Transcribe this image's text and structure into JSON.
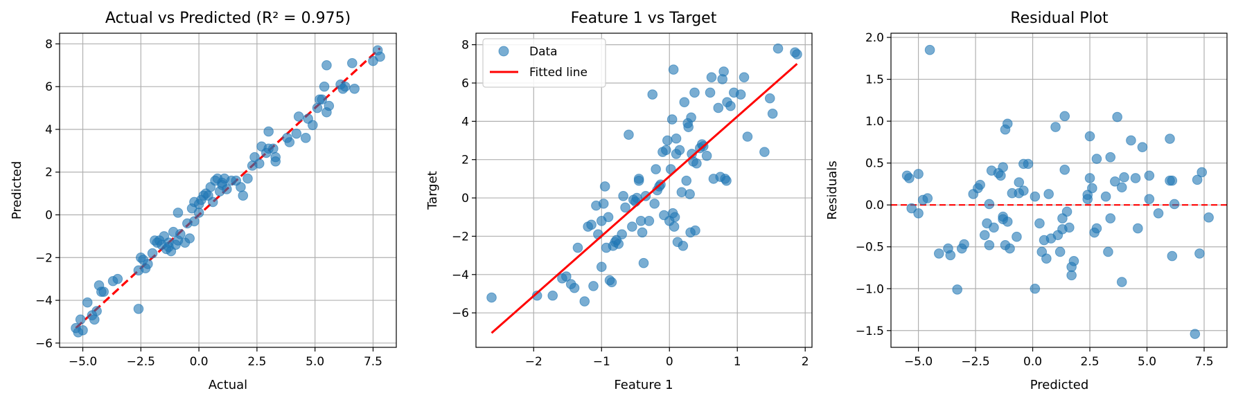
{
  "colors": {
    "point": "#1f77b4",
    "fit": "#ff0000",
    "grid": "#b0b0b0",
    "axis": "#000000"
  },
  "chart_data": [
    {
      "id": "actual-vs-predicted",
      "type": "scatter",
      "title": "Actual vs Predicted (R² = 0.975)",
      "xlabel": "Actual",
      "ylabel": "Predicted",
      "xlim": [
        -6.0,
        8.5
      ],
      "ylim": [
        -6.2,
        8.5
      ],
      "xticks": [
        -5.0,
        -2.5,
        0.0,
        2.5,
        5.0,
        7.5
      ],
      "xtick_labels": [
        "−5.0",
        "−2.5",
        "0.0",
        "2.5",
        "5.0",
        "7.5"
      ],
      "yticks": [
        -6,
        -4,
        -2,
        0,
        2,
        4,
        6,
        8
      ],
      "ytick_labels": [
        "−6",
        "−4",
        "−2",
        "0",
        "2",
        "4",
        "6",
        "8"
      ],
      "grid": true,
      "reference_line": {
        "style": "dashed",
        "x": [
          -5.3,
          7.8
        ],
        "y": [
          -5.3,
          7.8
        ]
      },
      "points": [
        [
          -5.3,
          -5.3
        ],
        [
          -5.2,
          -5.5
        ],
        [
          -5.1,
          -4.9
        ],
        [
          -5.0,
          -5.4
        ],
        [
          -4.8,
          -4.1
        ],
        [
          -4.6,
          -4.7
        ],
        [
          -4.5,
          -4.9
        ],
        [
          -4.4,
          -4.5
        ],
        [
          -4.3,
          -3.3
        ],
        [
          -4.2,
          -3.6
        ],
        [
          -4.1,
          -3.6
        ],
        [
          -3.7,
          -3.1
        ],
        [
          -3.5,
          -3.0
        ],
        [
          -2.6,
          -4.4
        ],
        [
          -2.6,
          -2.6
        ],
        [
          -2.5,
          -2.0
        ],
        [
          -2.4,
          -2.1
        ],
        [
          -2.3,
          -2.5
        ],
        [
          -2.2,
          -2.3
        ],
        [
          -2.0,
          -1.8
        ],
        [
          -1.9,
          -1.2
        ],
        [
          -1.8,
          -1.3
        ],
        [
          -1.7,
          -1.2
        ],
        [
          -1.6,
          -1.4
        ],
        [
          -1.5,
          -1.0
        ],
        [
          -1.4,
          -1.6
        ],
        [
          -1.3,
          -1.5
        ],
        [
          -1.3,
          -1.3
        ],
        [
          -1.2,
          -1.7
        ],
        [
          -1.1,
          -0.8
        ],
        [
          -1.0,
          -1.4
        ],
        [
          -0.9,
          -1.2
        ],
        [
          -0.9,
          0.1
        ],
        [
          -0.8,
          -0.9
        ],
        [
          -0.6,
          -1.3
        ],
        [
          -0.5,
          -0.4
        ],
        [
          -0.4,
          -1.1
        ],
        [
          -0.3,
          0.3
        ],
        [
          -0.2,
          0.6
        ],
        [
          -0.2,
          -0.3
        ],
        [
          0.0,
          0.5
        ],
        [
          0.0,
          0.1
        ],
        [
          0.1,
          0.7
        ],
        [
          0.2,
          0.9
        ],
        [
          0.3,
          1.0
        ],
        [
          0.4,
          0.9
        ],
        [
          0.5,
          1.3
        ],
        [
          0.6,
          0.6
        ],
        [
          0.7,
          1.6
        ],
        [
          0.8,
          1.7
        ],
        [
          0.9,
          1.1
        ],
        [
          1.0,
          1.4
        ],
        [
          1.0,
          1.5
        ],
        [
          1.1,
          1.7
        ],
        [
          1.2,
          1.2
        ],
        [
          1.4,
          1.6
        ],
        [
          1.6,
          1.6
        ],
        [
          1.8,
          1.3
        ],
        [
          1.9,
          0.9
        ],
        [
          2.1,
          1.7
        ],
        [
          2.3,
          2.3
        ],
        [
          2.4,
          2.7
        ],
        [
          2.6,
          2.4
        ],
        [
          2.7,
          3.2
        ],
        [
          2.9,
          2.9
        ],
        [
          3.0,
          3.9
        ],
        [
          3.0,
          3.1
        ],
        [
          3.2,
          3.1
        ],
        [
          3.3,
          2.7
        ],
        [
          3.3,
          2.5
        ],
        [
          3.8,
          3.6
        ],
        [
          3.9,
          3.4
        ],
        [
          4.2,
          3.8
        ],
        [
          4.3,
          4.6
        ],
        [
          4.6,
          3.6
        ],
        [
          4.7,
          4.5
        ],
        [
          4.9,
          4.2
        ],
        [
          5.1,
          5.0
        ],
        [
          5.2,
          5.4
        ],
        [
          5.3,
          5.4
        ],
        [
          5.4,
          6.0
        ],
        [
          5.5,
          7.0
        ],
        [
          5.5,
          4.8
        ],
        [
          5.6,
          5.1
        ],
        [
          6.1,
          6.1
        ],
        [
          6.2,
          5.9
        ],
        [
          6.6,
          7.1
        ],
        [
          6.7,
          5.9
        ],
        [
          7.5,
          7.2
        ],
        [
          7.7,
          7.7
        ],
        [
          7.8,
          7.4
        ],
        [
          6.3,
          6.0
        ]
      ]
    },
    {
      "id": "feature1-vs-target",
      "type": "scatter",
      "title": "Feature 1 vs Target",
      "xlabel": "Feature 1",
      "ylabel": "Target",
      "xlim": [
        -2.85,
        2.1
      ],
      "ylim": [
        -7.8,
        8.6
      ],
      "xticks": [
        -2,
        -1,
        0,
        1,
        2
      ],
      "xtick_labels": [
        "−2",
        "−1",
        "0",
        "1",
        "2"
      ],
      "yticks": [
        -6,
        -4,
        -2,
        0,
        2,
        4,
        6,
        8
      ],
      "ytick_labels": [
        "−6",
        "−4",
        "−2",
        "0",
        "2",
        "4",
        "6",
        "8"
      ],
      "grid": true,
      "legend": {
        "position": "top-left",
        "entries": [
          "Data",
          "Fitted line"
        ]
      },
      "fitted_line": {
        "x": [
          -2.62,
          1.88
        ],
        "y": [
          -7.05,
          7.0
        ]
      },
      "points": [
        [
          -2.62,
          -5.2
        ],
        [
          -1.95,
          -5.1
        ],
        [
          -1.72,
          -5.1
        ],
        [
          -1.58,
          -4.2
        ],
        [
          -1.52,
          -4.1
        ],
        [
          -1.45,
          -4.5
        ],
        [
          -1.4,
          -4.7
        ],
        [
          -1.35,
          -2.6
        ],
        [
          -1.25,
          -5.4
        ],
        [
          -1.2,
          -1.5
        ],
        [
          -1.15,
          -1.4
        ],
        [
          -1.12,
          -4.6
        ],
        [
          -1.08,
          -0.4
        ],
        [
          -1.05,
          -1.9
        ],
        [
          -1.0,
          -3.6
        ],
        [
          -1.0,
          -1.2
        ],
        [
          -0.97,
          -0.3
        ],
        [
          -0.95,
          0.6
        ],
        [
          -0.93,
          -2.6
        ],
        [
          -0.9,
          -1.0
        ],
        [
          -0.88,
          -4.3
        ],
        [
          -0.85,
          -4.4
        ],
        [
          -0.83,
          -2.5
        ],
        [
          -0.8,
          -2.3
        ],
        [
          -0.78,
          -2.2
        ],
        [
          -0.75,
          -2.4
        ],
        [
          -0.7,
          -1.9
        ],
        [
          -0.68,
          0.1
        ],
        [
          -0.65,
          -0.5
        ],
        [
          -0.6,
          3.3
        ],
        [
          -0.55,
          -1.5
        ],
        [
          -0.53,
          -0.1
        ],
        [
          -0.5,
          -0.2
        ],
        [
          -0.48,
          0.0
        ],
        [
          -0.45,
          1.0
        ],
        [
          -0.45,
          0.9
        ],
        [
          -0.42,
          -1.2
        ],
        [
          -0.4,
          -1.8
        ],
        [
          -0.38,
          -3.4
        ],
        [
          -0.35,
          0.1
        ],
        [
          -0.3,
          -1.2
        ],
        [
          -0.25,
          5.4
        ],
        [
          -0.22,
          -0.3
        ],
        [
          -0.2,
          1.5
        ],
        [
          -0.18,
          0.4
        ],
        [
          -0.15,
          0.6
        ],
        [
          -0.13,
          0.7
        ],
        [
          -0.1,
          2.4
        ],
        [
          -0.08,
          -0.9
        ],
        [
          -0.05,
          2.5
        ],
        [
          -0.03,
          3.0
        ],
        [
          0.0,
          -1.2
        ],
        [
          0.02,
          1.5
        ],
        [
          0.04,
          4.1
        ],
        [
          0.05,
          -0.8
        ],
        [
          0.06,
          6.7
        ],
        [
          0.07,
          -1.5
        ],
        [
          0.08,
          -1.0
        ],
        [
          0.1,
          2.3
        ],
        [
          0.1,
          3.1
        ],
        [
          0.12,
          -2.3
        ],
        [
          0.15,
          2.5
        ],
        [
          0.18,
          0.3
        ],
        [
          0.2,
          -2.5
        ],
        [
          0.22,
          5.0
        ],
        [
          0.25,
          0.9
        ],
        [
          0.27,
          3.9
        ],
        [
          0.28,
          3.7
        ],
        [
          0.3,
          0.2
        ],
        [
          0.31,
          -1.8
        ],
        [
          0.32,
          4.2
        ],
        [
          0.33,
          2.3
        ],
        [
          0.35,
          1.9
        ],
        [
          0.37,
          5.5
        ],
        [
          0.38,
          -1.7
        ],
        [
          0.4,
          1.8
        ],
        [
          0.45,
          2.6
        ],
        [
          0.48,
          2.8
        ],
        [
          0.5,
          2.7
        ],
        [
          0.55,
          2.2
        ],
        [
          0.6,
          5.5
        ],
        [
          0.62,
          6.3
        ],
        [
          0.65,
          1.0
        ],
        [
          0.72,
          4.7
        ],
        [
          0.75,
          1.1
        ],
        [
          0.78,
          6.2
        ],
        [
          0.8,
          6.6
        ],
        [
          0.82,
          1.0
        ],
        [
          0.84,
          0.9
        ],
        [
          0.85,
          5.0
        ],
        [
          0.9,
          4.8
        ],
        [
          0.95,
          5.5
        ],
        [
          1.05,
          5.4
        ],
        [
          1.1,
          6.3
        ],
        [
          1.15,
          3.2
        ],
        [
          1.4,
          2.4
        ],
        [
          1.48,
          5.2
        ],
        [
          1.52,
          4.4
        ],
        [
          1.6,
          7.8
        ],
        [
          1.85,
          7.6
        ],
        [
          1.88,
          7.5
        ]
      ]
    },
    {
      "id": "residual-plot",
      "type": "scatter",
      "title": "Residual Plot",
      "xlabel": "Predicted",
      "ylabel": "Residuals",
      "xlim": [
        -6.2,
        8.5
      ],
      "ylim": [
        -1.7,
        2.05
      ],
      "xticks": [
        -5.0,
        -2.5,
        0.0,
        2.5,
        5.0,
        7.5
      ],
      "xtick_labels": [
        "−5.0",
        "−2.5",
        "0.0",
        "2.5",
        "5.0",
        "7.5"
      ],
      "yticks": [
        -1.5,
        -1.0,
        -0.5,
        0.0,
        0.5,
        1.0,
        1.5,
        2.0
      ],
      "ytick_labels": [
        "−1.5",
        "−1.0",
        "−0.5",
        "0.0",
        "0.5",
        "1.0",
        "1.5",
        "2.0"
      ],
      "grid": true,
      "zero_line": {
        "style": "dashed",
        "y": 0.0
      },
      "points": [
        [
          -5.5,
          0.35
        ],
        [
          -5.4,
          0.32
        ],
        [
          -5.3,
          -0.04
        ],
        [
          -5.0,
          0.37
        ],
        [
          -5.0,
          -0.1
        ],
        [
          -4.8,
          0.06
        ],
        [
          -4.6,
          0.08
        ],
        [
          -4.5,
          1.85
        ],
        [
          -4.1,
          -0.58
        ],
        [
          -3.7,
          -0.52
        ],
        [
          -3.6,
          -0.6
        ],
        [
          -3.3,
          -1.01
        ],
        [
          -3.1,
          -0.52
        ],
        [
          -3.0,
          -0.47
        ],
        [
          -2.6,
          0.13
        ],
        [
          -2.4,
          0.2
        ],
        [
          -2.3,
          0.24
        ],
        [
          -2.1,
          -0.36
        ],
        [
          -2.0,
          -0.22
        ],
        [
          -1.9,
          -0.48
        ],
        [
          -1.9,
          0.01
        ],
        [
          -1.8,
          0.41
        ],
        [
          -1.7,
          -0.27
        ],
        [
          -1.5,
          0.38
        ],
        [
          -1.4,
          0.35
        ],
        [
          -1.3,
          0.45
        ],
        [
          -1.3,
          -0.14
        ],
        [
          -1.3,
          -0.17
        ],
        [
          -1.2,
          0.9
        ],
        [
          -1.2,
          -0.48
        ],
        [
          -1.1,
          0.97
        ],
        [
          -1.1,
          -0.2
        ],
        [
          -1.0,
          -0.52
        ],
        [
          -0.9,
          0.14
        ],
        [
          -0.7,
          -0.38
        ],
        [
          -0.6,
          0.27
        ],
        [
          -0.6,
          0.14
        ],
        [
          -0.4,
          0.17
        ],
        [
          -0.4,
          0.49
        ],
        [
          -0.2,
          0.49
        ],
        [
          0.1,
          0.1
        ],
        [
          0.1,
          -1.0
        ],
        [
          0.3,
          -0.22
        ],
        [
          0.4,
          -0.56
        ],
        [
          0.5,
          -0.42
        ],
        [
          0.6,
          -0.64
        ],
        [
          0.7,
          0.13
        ],
        [
          0.8,
          -0.4
        ],
        [
          1.0,
          0.93
        ],
        [
          1.1,
          -0.36
        ],
        [
          1.2,
          -0.56
        ],
        [
          1.3,
          -0.29
        ],
        [
          1.3,
          -0.16
        ],
        [
          1.4,
          1.06
        ],
        [
          1.4,
          0.42
        ],
        [
          1.5,
          -0.08
        ],
        [
          1.6,
          -0.27
        ],
        [
          1.7,
          -0.74
        ],
        [
          1.7,
          -0.84
        ],
        [
          1.8,
          -0.67
        ],
        [
          2.4,
          0.07
        ],
        [
          2.4,
          0.12
        ],
        [
          2.5,
          0.32
        ],
        [
          2.5,
          0.82
        ],
        [
          2.6,
          0.2
        ],
        [
          2.7,
          -0.33
        ],
        [
          2.8,
          -0.28
        ],
        [
          2.8,
          0.55
        ],
        [
          3.2,
          0.1
        ],
        [
          3.3,
          -0.56
        ],
        [
          3.4,
          0.57
        ],
        [
          3.4,
          -0.16
        ],
        [
          3.6,
          0.28
        ],
        [
          3.7,
          1.05
        ],
        [
          3.9,
          0.21
        ],
        [
          3.9,
          -0.92
        ],
        [
          4.0,
          0.33
        ],
        [
          4.3,
          0.77
        ],
        [
          4.5,
          0.32
        ],
        [
          4.6,
          -0.28
        ],
        [
          4.8,
          0.69
        ],
        [
          5.1,
          0.35
        ],
        [
          5.1,
          0.07
        ],
        [
          5.5,
          -0.1
        ],
        [
          6.0,
          0.79
        ],
        [
          6.0,
          0.29
        ],
        [
          6.1,
          0.29
        ],
        [
          6.1,
          -0.61
        ],
        [
          6.2,
          0.01
        ],
        [
          7.1,
          -1.54
        ],
        [
          7.2,
          0.3
        ],
        [
          7.3,
          -0.58
        ],
        [
          7.4,
          0.39
        ],
        [
          7.7,
          -0.15
        ]
      ]
    }
  ]
}
